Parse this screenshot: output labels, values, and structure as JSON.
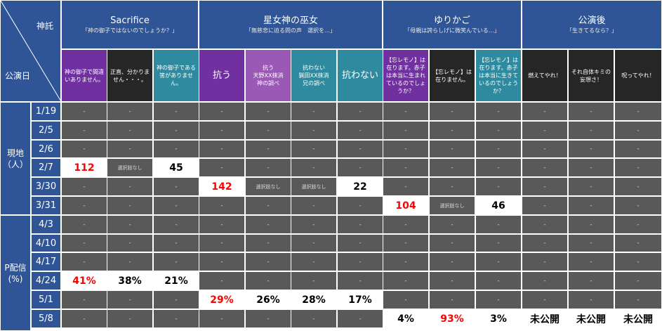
{
  "header": {
    "corner_top": "神託",
    "corner_bottom": "公演日",
    "groups": [
      {
        "title": "Sacrifice",
        "subtitle": "「神の御子ではないのでしょうか？」"
      },
      {
        "title": "星女神の巫女",
        "subtitle": "「無慈悲に迫る問の声　選択を…」"
      },
      {
        "title": "ゆりかご",
        "subtitle": "「母親は誇らしげに微笑んでいる…」"
      },
      {
        "title": "公演後",
        "subtitle": "「生きてるなら？」"
      }
    ]
  },
  "options": [
    {
      "label": "神の御子で間違いありません。",
      "color": "#7030a0"
    },
    {
      "label": "正直、分かりません・・・。",
      "color": "#262626"
    },
    {
      "label": "神の御子である筈がありません。",
      "color": "#2e8b9f"
    },
    {
      "label": "抗う",
      "color": "#7030a0"
    },
    {
      "label": "抗う\n天野XX抹消\n神の調べ",
      "color": "#9b59b6"
    },
    {
      "label": "抗わない\n猟田XX抹消\n兄の調べ",
      "color": "#2e8b9f"
    },
    {
      "label": "抗わない",
      "color": "#2e8b9f"
    },
    {
      "label": "【忘レモノ】は在ります。赤子は本当に生まれているのでしょうか？",
      "color": "#7030a0"
    },
    {
      "label": "【忘レモノ】は在りません。",
      "color": "#262626"
    },
    {
      "label": "【忘レモノ】は在ります。赤子は本当に生きているのでしょうか？",
      "color": "#2e8b9f"
    },
    {
      "label": "燃えてやれ！",
      "color": "#262626"
    },
    {
      "label": "それ自体キミの妄想さ！",
      "color": "#262626"
    },
    {
      "label": "呪ってやれ！",
      "color": "#262626"
    }
  ],
  "sections": [
    {
      "label": "現地\n（人）"
    },
    {
      "label": "P配信\n(%)"
    }
  ],
  "dates": [
    "1/19",
    "2/5",
    "2/6",
    "2/7",
    "3/30",
    "3/31",
    "4/3",
    "4/10",
    "4/17",
    "4/24",
    "5/1",
    "5/8"
  ],
  "rows": [
    [
      "-",
      "-",
      "-",
      "-",
      "-",
      "-",
      "-",
      "-",
      "-",
      "-",
      "-",
      "-",
      "-"
    ],
    [
      "-",
      "-",
      "-",
      "-",
      "-",
      "-",
      "-",
      "-",
      "-",
      "-",
      "-",
      "-",
      "-"
    ],
    [
      "-",
      "-",
      "-",
      "-",
      "-",
      "-",
      "-",
      "-",
      "-",
      "-",
      "-",
      "-",
      "-"
    ],
    [
      "112",
      "選択肢なし",
      "45",
      "-",
      "-",
      "-",
      "-",
      "-",
      "-",
      "-",
      "-",
      "-",
      "-"
    ],
    [
      "-",
      "-",
      "-",
      "142",
      "選択肢なし",
      "選択肢なし",
      "22",
      "-",
      "-",
      "-",
      "-",
      "-",
      "-"
    ],
    [
      "-",
      "-",
      "-",
      "-",
      "-",
      "-",
      "-",
      "104",
      "選択肢なし",
      "46",
      "-",
      "-",
      "-"
    ],
    [
      "-",
      "-",
      "-",
      "-",
      "-",
      "-",
      "-",
      "-",
      "-",
      "-",
      "-",
      "-",
      "-"
    ],
    [
      "-",
      "-",
      "-",
      "-",
      "-",
      "-",
      "-",
      "-",
      "-",
      "-",
      "-",
      "-",
      "-"
    ],
    [
      "-",
      "-",
      "-",
      "-",
      "-",
      "-",
      "-",
      "-",
      "-",
      "-",
      "-",
      "-",
      "-"
    ],
    [
      "41%",
      "38%",
      "21%",
      "-",
      "-",
      "-",
      "-",
      "-",
      "-",
      "-",
      "-",
      "-",
      "-"
    ],
    [
      "-",
      "-",
      "-",
      "29%",
      "26%",
      "28%",
      "17%",
      "-",
      "-",
      "-",
      "-",
      "-",
      "-"
    ],
    [
      "-",
      "-",
      "-",
      "-",
      "-",
      "-",
      "-",
      "4%",
      "93%",
      "3%",
      "未公開",
      "未公開",
      "未公開"
    ]
  ],
  "highlight_red": [
    [
      3,
      0
    ],
    [
      4,
      3
    ],
    [
      5,
      7
    ],
    [
      9,
      0
    ],
    [
      10,
      3
    ],
    [
      11,
      8
    ]
  ]
}
